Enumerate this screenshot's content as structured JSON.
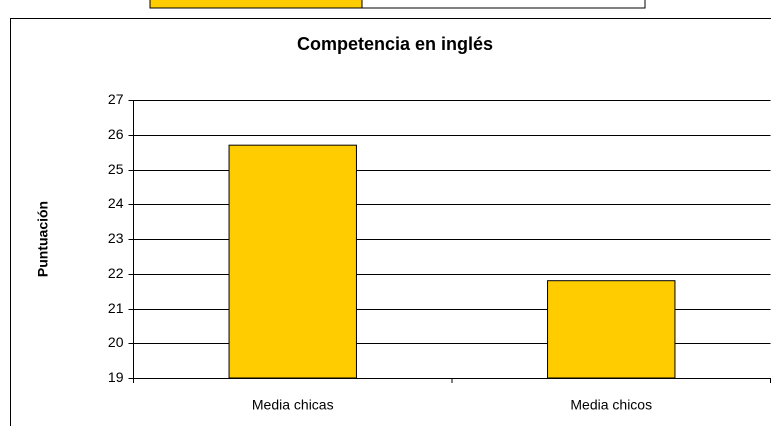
{
  "chart_data": {
    "type": "bar",
    "title": "Competencia en inglés",
    "y_label": "Puntuación",
    "categories": [
      "Media chicas",
      "Media chicos"
    ],
    "values": [
      25.7,
      21.8
    ],
    "color": "#ffcc00",
    "ylim": [
      19,
      27
    ],
    "yticks": [
      19,
      20,
      21,
      22,
      23,
      24,
      25,
      26,
      27
    ],
    "grid": true
  }
}
